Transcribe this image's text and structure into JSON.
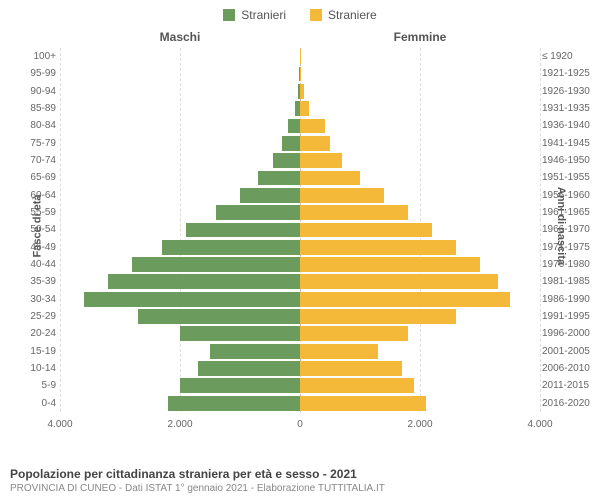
{
  "legend": {
    "male": {
      "label": "Stranieri",
      "color": "#6b9c5e"
    },
    "female": {
      "label": "Straniere",
      "color": "#f4b939"
    }
  },
  "halves": {
    "left": "Maschi",
    "right": "Femmine"
  },
  "axis": {
    "left_title": "Fasce di età",
    "right_title": "Anni di nascita",
    "x_max": 4000,
    "x_ticks": [
      {
        "value": -4000,
        "label": "4.000"
      },
      {
        "value": -2000,
        "label": "2.000"
      },
      {
        "value": 0,
        "label": "0"
      },
      {
        "value": 2000,
        "label": "2.000"
      },
      {
        "value": 4000,
        "label": "4.000"
      }
    ],
    "grid_values": [
      -4000,
      -2000,
      0,
      2000,
      4000
    ]
  },
  "age_groups": [
    {
      "label": "100+",
      "birth": "≤ 1920",
      "male": 5,
      "female": 10
    },
    {
      "label": "95-99",
      "birth": "1921-1925",
      "male": 10,
      "female": 15
    },
    {
      "label": "90-94",
      "birth": "1926-1930",
      "male": 30,
      "female": 60
    },
    {
      "label": "85-89",
      "birth": "1931-1935",
      "male": 80,
      "female": 150
    },
    {
      "label": "80-84",
      "birth": "1936-1940",
      "male": 200,
      "female": 420
    },
    {
      "label": "75-79",
      "birth": "1941-1945",
      "male": 300,
      "female": 500
    },
    {
      "label": "70-74",
      "birth": "1946-1950",
      "male": 450,
      "female": 700
    },
    {
      "label": "65-69",
      "birth": "1951-1955",
      "male": 700,
      "female": 1000
    },
    {
      "label": "60-64",
      "birth": "1956-1960",
      "male": 1000,
      "female": 1400
    },
    {
      "label": "55-59",
      "birth": "1961-1965",
      "male": 1400,
      "female": 1800
    },
    {
      "label": "50-54",
      "birth": "1966-1970",
      "male": 1900,
      "female": 2200
    },
    {
      "label": "45-49",
      "birth": "1971-1975",
      "male": 2300,
      "female": 2600
    },
    {
      "label": "40-44",
      "birth": "1976-1980",
      "male": 2800,
      "female": 3000
    },
    {
      "label": "35-39",
      "birth": "1981-1985",
      "male": 3200,
      "female": 3300
    },
    {
      "label": "30-34",
      "birth": "1986-1990",
      "male": 3600,
      "female": 3500
    },
    {
      "label": "25-29",
      "birth": "1991-1995",
      "male": 2700,
      "female": 2600
    },
    {
      "label": "20-24",
      "birth": "1996-2000",
      "male": 2000,
      "female": 1800
    },
    {
      "label": "15-19",
      "birth": "2001-2005",
      "male": 1500,
      "female": 1300
    },
    {
      "label": "10-14",
      "birth": "2006-2010",
      "male": 1700,
      "female": 1700
    },
    {
      "label": "5-9",
      "birth": "2011-2015",
      "male": 2000,
      "female": 1900
    },
    {
      "label": "0-4",
      "birth": "2016-2020",
      "male": 2200,
      "female": 2100
    }
  ],
  "footer": {
    "title": "Popolazione per cittadinanza straniera per età e sesso - 2021",
    "subtitle": "PROVINCIA DI CUNEO - Dati ISTAT 1° gennaio 2021 - Elaborazione TUTTITALIA.IT"
  },
  "style": {
    "background": "#ffffff",
    "grid_color": "#dddddd",
    "text_color": "#555555",
    "bar_gap_pct": 14,
    "font_family": "Arial, Helvetica, sans-serif"
  }
}
